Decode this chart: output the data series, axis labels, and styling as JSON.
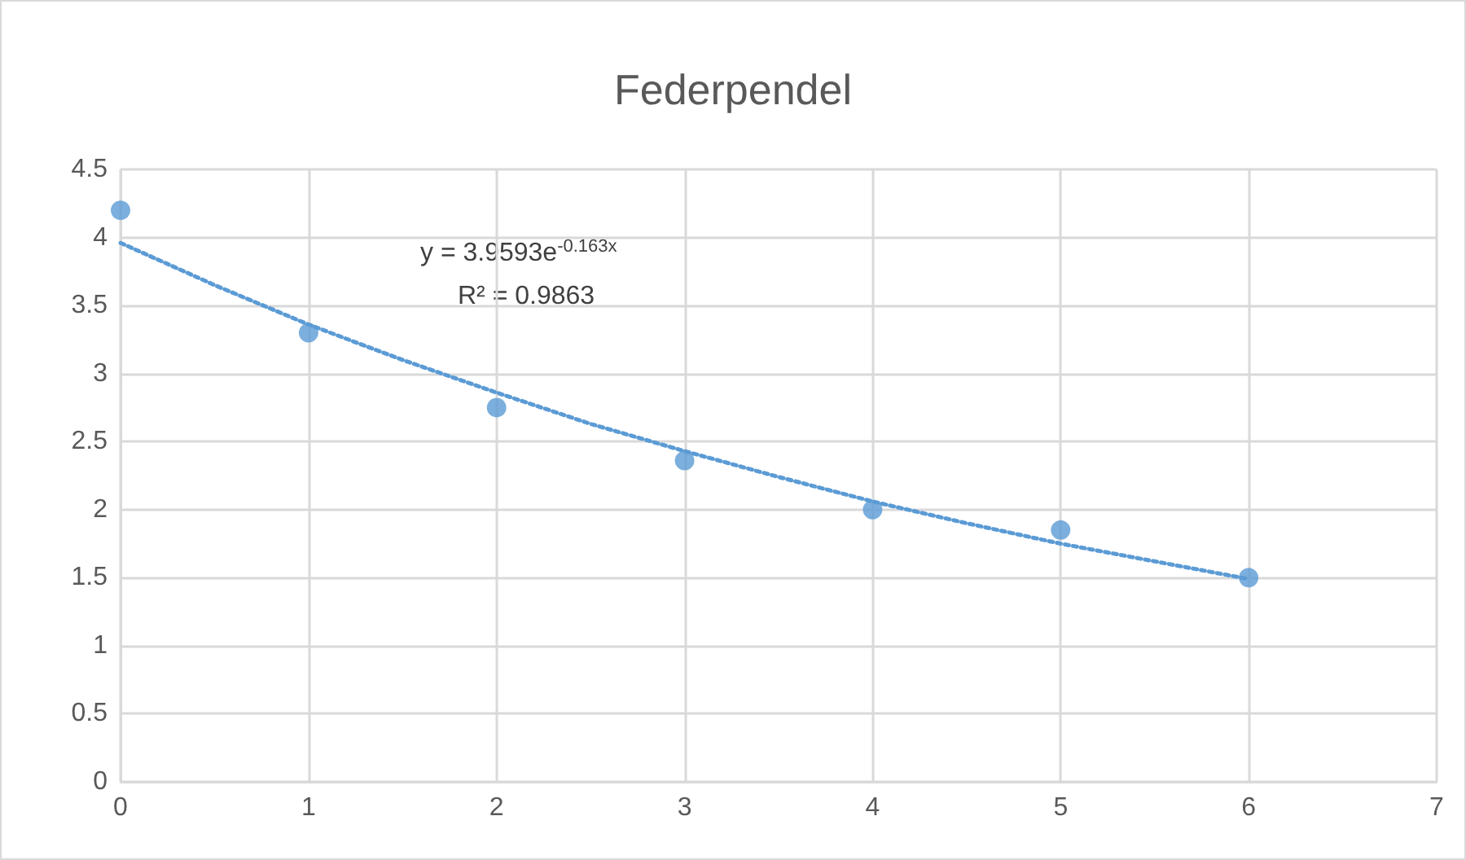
{
  "chart_data": {
    "type": "scatter",
    "title": "Federpendel",
    "x": [
      0,
      1,
      2,
      3,
      4,
      5,
      6
    ],
    "series": [
      {
        "color": "#5b9bd5",
        "marker": "circle",
        "values": [
          4.2,
          3.3,
          2.75,
          2.36,
          2.0,
          1.85,
          1.5
        ]
      },
      {
        "type": "line",
        "color": "#5b9bd5",
        "marker": "none",
        "line_style": "dotted",
        "x": [
          0,
          0.5,
          1,
          1.5,
          2,
          2.5,
          3,
          3.5,
          4,
          4.5,
          5,
          5.5,
          6
        ],
        "values": [
          3.96,
          3.65,
          3.36,
          3.1,
          2.86,
          2.63,
          2.43,
          2.24,
          2.06,
          1.9,
          1.75,
          1.62,
          1.49
        ]
      }
    ],
    "annotations": [
      "y = 3.9593e$^{-0.163x}$",
      "R² = 0.9863"
    ],
    "xlim": [
      0,
      7
    ],
    "xticks": [
      0,
      1,
      2,
      3,
      4,
      5,
      6,
      7
    ],
    "ylim": [
      0,
      4.5
    ],
    "yticks": [
      0,
      0.5,
      1,
      1.5,
      2,
      2.5,
      3,
      3.5,
      4,
      4.5
    ],
    "grid": true
  }
}
